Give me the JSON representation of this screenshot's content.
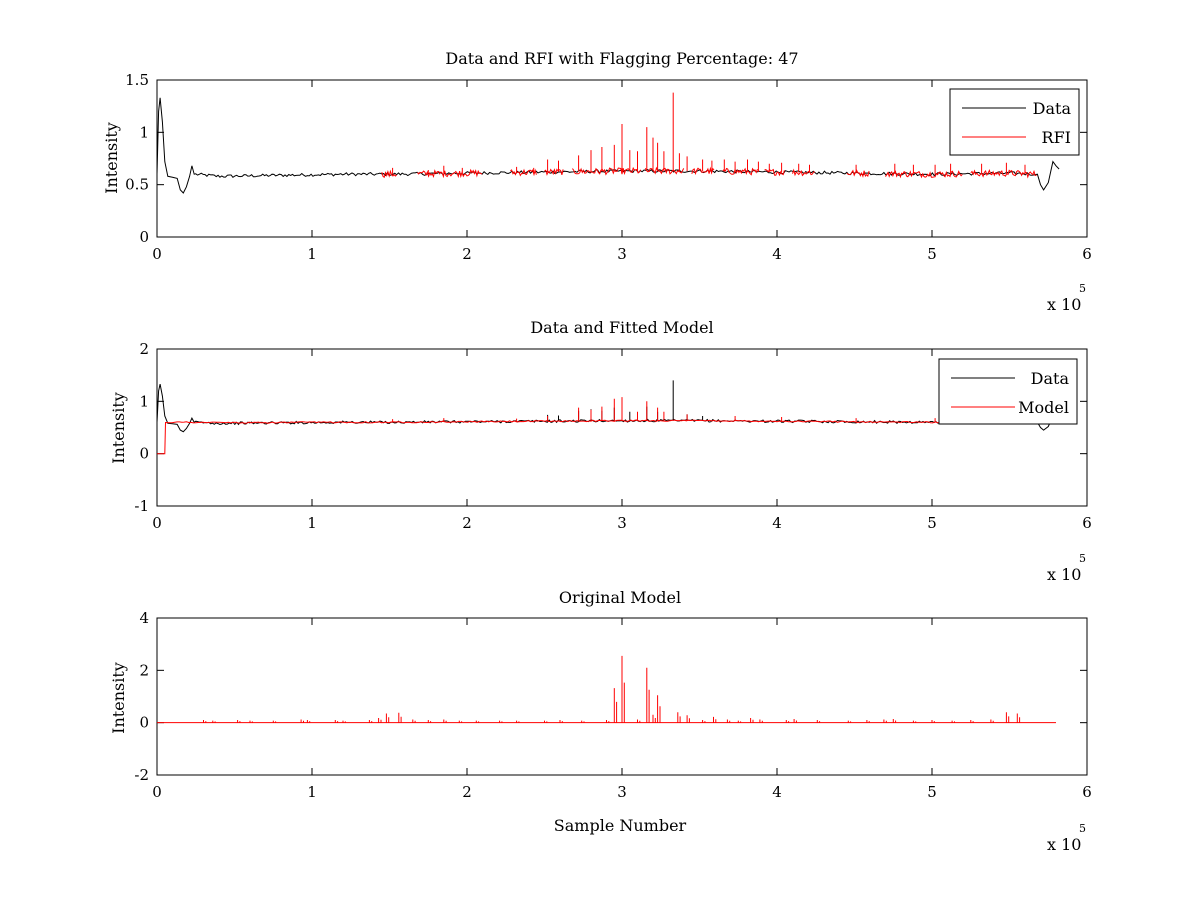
{
  "chart_data": [
    {
      "type": "line",
      "title": "Data and RFI with Flagging Percentage: 47",
      "xlabel": "",
      "ylabel": "Intensity",
      "xlim": [
        0,
        600000
      ],
      "ylim": [
        0,
        1.5
      ],
      "xticks": [
        0,
        1,
        2,
        3,
        4,
        5,
        6
      ],
      "yticks": [
        0,
        0.5,
        1,
        1.5
      ],
      "x_multiplier_label": "x 10",
      "x_multiplier_exponent": "5",
      "legend": {
        "position": "top-right",
        "entries": [
          "Data",
          "RFI"
        ]
      },
      "colors": {
        "Data": "#000000",
        "RFI": "#ff0000"
      },
      "series": [
        {
          "name": "Data",
          "points": [
            [
              0,
              0.6
            ],
            [
              1000,
              1.2
            ],
            [
              2000,
              1.33
            ],
            [
              3500,
              1.1
            ],
            [
              5000,
              0.72
            ],
            [
              7000,
              0.58
            ],
            [
              10000,
              0.57
            ],
            [
              13000,
              0.56
            ],
            [
              15000,
              0.45
            ],
            [
              17000,
              0.42
            ],
            [
              19000,
              0.48
            ],
            [
              21000,
              0.58
            ],
            [
              22500,
              0.68
            ],
            [
              24000,
              0.6
            ],
            [
              40000,
              0.58
            ],
            [
              80000,
              0.59
            ],
            [
              120000,
              0.6
            ],
            [
              150000,
              0.6
            ],
            [
              200000,
              0.61
            ],
            [
              250000,
              0.62
            ],
            [
              300000,
              0.63
            ],
            [
              350000,
              0.63
            ],
            [
              400000,
              0.62
            ],
            [
              450000,
              0.61
            ],
            [
              500000,
              0.6
            ],
            [
              550000,
              0.61
            ],
            [
              568000,
              0.6
            ],
            [
              570000,
              0.5
            ],
            [
              572000,
              0.45
            ],
            [
              575000,
              0.52
            ],
            [
              578000,
              0.72
            ],
            [
              580000,
              0.68
            ],
            [
              582000,
              0.65
            ]
          ]
        },
        {
          "name": "RFI",
          "segments": [
            [
              145000,
              155000
            ],
            [
              168000,
              210000
            ],
            [
              228000,
              245000
            ],
            [
              250000,
              262000
            ],
            [
              268000,
              312000
            ],
            [
              315000,
              340000
            ],
            [
              345000,
              360000
            ],
            [
              365000,
              388000
            ],
            [
              392000,
              405000
            ],
            [
              410000,
              425000
            ],
            [
              445000,
              460000
            ],
            [
              470000,
              520000
            ],
            [
              525000,
              568000
            ]
          ],
          "spikes": [
            [
              152000,
              0.66
            ],
            [
              175000,
              0.64
            ],
            [
              185000,
              0.68
            ],
            [
              197000,
              0.66
            ],
            [
              232000,
              0.67
            ],
            [
              243000,
              0.66
            ],
            [
              252000,
              0.74
            ],
            [
              259000,
              0.73
            ],
            [
              272000,
              0.78
            ],
            [
              280000,
              0.83
            ],
            [
              287000,
              0.86
            ],
            [
              295000,
              0.88
            ],
            [
              300000,
              1.08
            ],
            [
              305000,
              0.83
            ],
            [
              310000,
              0.82
            ],
            [
              316000,
              1.05
            ],
            [
              320000,
              0.95
            ],
            [
              323000,
              0.9
            ],
            [
              327000,
              0.82
            ],
            [
              333000,
              1.38
            ],
            [
              337000,
              0.8
            ],
            [
              342000,
              0.77
            ],
            [
              352000,
              0.74
            ],
            [
              358000,
              0.73
            ],
            [
              366000,
              0.74
            ],
            [
              373000,
              0.72
            ],
            [
              381000,
              0.74
            ],
            [
              388000,
              0.72
            ],
            [
              395000,
              0.7
            ],
            [
              403000,
              0.71
            ],
            [
              414000,
              0.7
            ],
            [
              421000,
              0.69
            ],
            [
              451000,
              0.69
            ],
            [
              476000,
              0.7
            ],
            [
              488000,
              0.69
            ],
            [
              502000,
              0.69
            ],
            [
              512000,
              0.7
            ],
            [
              532000,
              0.7
            ],
            [
              548000,
              0.71
            ],
            [
              560000,
              0.69
            ]
          ]
        }
      ]
    },
    {
      "type": "line",
      "title": "Data and Fitted Model",
      "xlabel": "",
      "ylabel": "Intensity",
      "xlim": [
        0,
        600000
      ],
      "ylim": [
        -1,
        2
      ],
      "xticks": [
        0,
        1,
        2,
        3,
        4,
        5,
        6
      ],
      "yticks": [
        -1,
        0,
        1,
        2
      ],
      "x_multiplier_label": "x 10",
      "x_multiplier_exponent": "5",
      "legend": {
        "position": "top-right",
        "entries": [
          "Data",
          "Model"
        ]
      },
      "colors": {
        "Data": "#000000",
        "Model": "#ff0000"
      },
      "series": [
        {
          "name": "Data",
          "points": [
            [
              0,
              0.6
            ],
            [
              1000,
              1.2
            ],
            [
              2000,
              1.33
            ],
            [
              3500,
              1.1
            ],
            [
              5000,
              0.72
            ],
            [
              7000,
              0.58
            ],
            [
              10000,
              0.57
            ],
            [
              13000,
              0.56
            ],
            [
              15000,
              0.45
            ],
            [
              17000,
              0.42
            ],
            [
              19000,
              0.48
            ],
            [
              21000,
              0.58
            ],
            [
              22500,
              0.68
            ],
            [
              24000,
              0.6
            ],
            [
              40000,
              0.58
            ],
            [
              80000,
              0.59
            ],
            [
              120000,
              0.6
            ],
            [
              150000,
              0.6
            ],
            [
              200000,
              0.61
            ],
            [
              250000,
              0.62
            ],
            [
              300000,
              0.63
            ],
            [
              350000,
              0.63
            ],
            [
              400000,
              0.62
            ],
            [
              450000,
              0.61
            ],
            [
              500000,
              0.6
            ],
            [
              550000,
              0.61
            ],
            [
              568000,
              0.6
            ],
            [
              570000,
              0.5
            ],
            [
              572000,
              0.45
            ],
            [
              575000,
              0.52
            ],
            [
              578000,
              0.72
            ],
            [
              580000,
              0.68
            ],
            [
              582000,
              0.65
            ]
          ],
          "spikes": [
            [
              252000,
              0.74
            ],
            [
              259000,
              0.73
            ],
            [
              272000,
              0.82
            ],
            [
              280000,
              0.85
            ],
            [
              287000,
              0.82
            ],
            [
              295000,
              0.88
            ],
            [
              300000,
              0.95
            ],
            [
              305000,
              0.8
            ],
            [
              310000,
              0.75
            ],
            [
              316000,
              0.9
            ],
            [
              323000,
              0.8
            ],
            [
              333000,
              1.4
            ],
            [
              342000,
              0.75
            ],
            [
              352000,
              0.72
            ]
          ]
        },
        {
          "name": "Model",
          "points": [
            [
              5000,
              0
            ],
            [
              5500,
              0.6
            ],
            [
              20000,
              0.6
            ],
            [
              60000,
              0.59
            ],
            [
              100000,
              0.6
            ],
            [
              150000,
              0.6
            ],
            [
              200000,
              0.61
            ],
            [
              250000,
              0.62
            ],
            [
              300000,
              0.63
            ],
            [
              350000,
              0.63
            ],
            [
              400000,
              0.62
            ],
            [
              450000,
              0.61
            ],
            [
              500000,
              0.6
            ],
            [
              560000,
              0.6
            ],
            [
              585000,
              0.61
            ]
          ],
          "spikes": [
            [
              152000,
              0.66
            ],
            [
              185000,
              0.68
            ],
            [
              232000,
              0.67
            ],
            [
              252000,
              0.72
            ],
            [
              272000,
              0.88
            ],
            [
              280000,
              0.84
            ],
            [
              287000,
              0.9
            ],
            [
              295000,
              1.05
            ],
            [
              300000,
              1.08
            ],
            [
              310000,
              0.8
            ],
            [
              316000,
              1.0
            ],
            [
              323000,
              0.88
            ],
            [
              327000,
              0.8
            ],
            [
              342000,
              0.75
            ],
            [
              373000,
              0.72
            ],
            [
              403000,
              0.7
            ],
            [
              451000,
              0.68
            ],
            [
              502000,
              0.68
            ],
            [
              548000,
              0.7
            ]
          ]
        }
      ]
    },
    {
      "type": "line",
      "title": "Original Model",
      "xlabel": "Sample Number",
      "ylabel": "Intensity",
      "xlim": [
        0,
        600000
      ],
      "ylim": [
        -2,
        4
      ],
      "xticks": [
        0,
        1,
        2,
        3,
        4,
        5,
        6
      ],
      "yticks": [
        -2,
        0,
        2,
        4
      ],
      "x_multiplier_label": "x 10",
      "x_multiplier_exponent": "5",
      "colors": {
        "line": "#ff0000"
      },
      "baseline": [
        0,
        580000,
        0
      ],
      "spikes": [
        [
          30000,
          0.1
        ],
        [
          36000,
          0.08
        ],
        [
          52000,
          0.1
        ],
        [
          60000,
          0.08
        ],
        [
          75000,
          0.08
        ],
        [
          93000,
          0.12
        ],
        [
          97000,
          0.1
        ],
        [
          115000,
          0.1
        ],
        [
          120000,
          0.08
        ],
        [
          137000,
          0.1
        ],
        [
          143000,
          0.18
        ],
        [
          148000,
          0.35
        ],
        [
          156000,
          0.38
        ],
        [
          165000,
          0.12
        ],
        [
          175000,
          0.1
        ],
        [
          185000,
          0.12
        ],
        [
          195000,
          0.08
        ],
        [
          206000,
          0.08
        ],
        [
          221000,
          0.08
        ],
        [
          232000,
          0.08
        ],
        [
          250000,
          0.08
        ],
        [
          260000,
          0.1
        ],
        [
          274000,
          0.08
        ],
        [
          290000,
          0.1
        ],
        [
          295000,
          1.32
        ],
        [
          300000,
          2.55
        ],
        [
          310000,
          0.12
        ],
        [
          316000,
          2.1
        ],
        [
          320000,
          0.3
        ],
        [
          323000,
          1.05
        ],
        [
          336000,
          0.4
        ],
        [
          342000,
          0.28
        ],
        [
          352000,
          0.1
        ],
        [
          359000,
          0.22
        ],
        [
          368000,
          0.12
        ],
        [
          375000,
          0.08
        ],
        [
          383000,
          0.18
        ],
        [
          389000,
          0.12
        ],
        [
          406000,
          0.1
        ],
        [
          411000,
          0.14
        ],
        [
          426000,
          0.1
        ],
        [
          446000,
          0.08
        ],
        [
          458000,
          0.1
        ],
        [
          469000,
          0.12
        ],
        [
          475000,
          0.14
        ],
        [
          488000,
          0.08
        ],
        [
          500000,
          0.1
        ],
        [
          513000,
          0.08
        ],
        [
          525000,
          0.1
        ],
        [
          538000,
          0.12
        ],
        [
          548000,
          0.4
        ],
        [
          555000,
          0.35
        ]
      ]
    }
  ]
}
